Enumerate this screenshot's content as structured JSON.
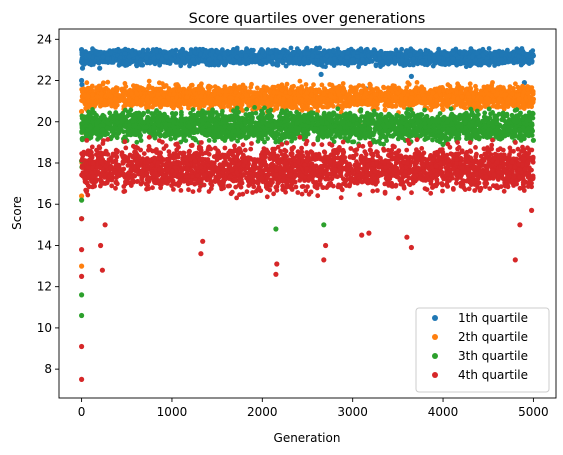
{
  "chart_data": {
    "type": "scatter",
    "title": "Score quartiles over generations",
    "xlabel": "Generation",
    "ylabel": "Score",
    "xlim": [
      -250,
      5250
    ],
    "ylim": [
      6.6,
      24.5
    ],
    "xticks": [
      0,
      1000,
      2000,
      3000,
      4000,
      5000
    ],
    "yticks": [
      8,
      10,
      12,
      14,
      16,
      18,
      20,
      22,
      24
    ],
    "legend_position": "lower-right",
    "series": [
      {
        "name": "1th quartile",
        "color": "#1f77b4",
        "band": [
          22.6,
          23.65
        ],
        "x": [
          0,
          0,
          0,
          5,
          10,
          200,
          500,
          1000,
          1500,
          2000,
          2500,
          2650,
          3000,
          3150,
          3650,
          4000,
          4500,
          4900,
          5000
        ],
        "y": [
          22.0,
          22.9,
          23.5,
          21.8,
          22.6,
          22.6,
          22.8,
          23.0,
          22.9,
          22.8,
          22.9,
          22.3,
          23.0,
          21.6,
          22.2,
          22.8,
          22.9,
          21.9,
          23.2
        ]
      },
      {
        "name": "2th quartile",
        "color": "#ff7f0e",
        "band": [
          20.4,
          22.0
        ],
        "x": [
          0,
          0,
          0,
          5,
          10,
          1300,
          2000,
          2150,
          2700,
          3100,
          3650,
          4000,
          4500,
          5000
        ],
        "y": [
          13.0,
          16.4,
          20.5,
          18.0,
          19.5,
          19.9,
          20.2,
          19.8,
          19.6,
          19.8,
          19.9,
          20.6,
          20.9,
          21.1
        ]
      },
      {
        "name": "3th quartile",
        "color": "#2ca02c",
        "band": [
          18.8,
          20.8
        ],
        "x": [
          0,
          0,
          0,
          0,
          0,
          5,
          10,
          1320,
          2150,
          2680,
          3000,
          4000,
          5000
        ],
        "y": [
          10.6,
          11.6,
          15.3,
          16.2,
          18.1,
          17.8,
          19.2,
          17.0,
          14.8,
          15.0,
          18.3,
          18.9,
          19.1
        ]
      },
      {
        "name": "4th quartile",
        "color": "#d62728",
        "band": [
          16.2,
          19.3
        ],
        "x": [
          0,
          0,
          0,
          0,
          0,
          210,
          230,
          260,
          1320,
          1340,
          2150,
          2160,
          2680,
          2700,
          3100,
          3180,
          3600,
          3650,
          4800,
          4850,
          4980
        ],
        "y": [
          7.5,
          9.1,
          12.5,
          13.8,
          15.3,
          14.0,
          12.8,
          15.0,
          13.6,
          14.2,
          12.6,
          13.1,
          13.3,
          14.0,
          14.5,
          14.6,
          14.4,
          13.9,
          13.3,
          15.0,
          15.7
        ]
      }
    ]
  }
}
